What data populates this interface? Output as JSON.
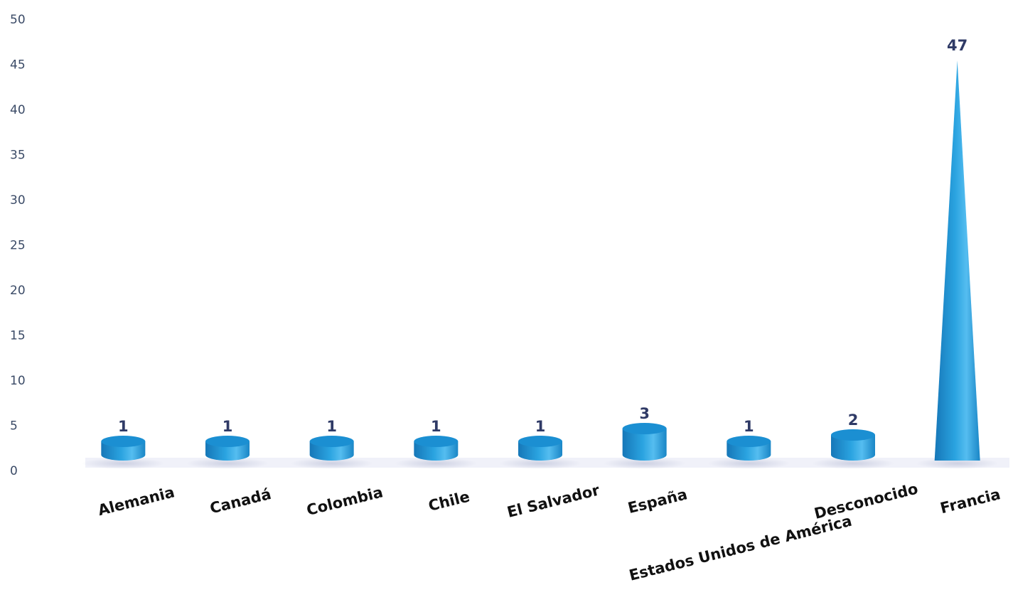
{
  "chart_data": {
    "type": "bar",
    "categories": [
      "Alemania",
      "Canadá",
      "Colombia",
      "Chile",
      "El Salvador",
      "España",
      "Estados Unidos de América",
      "Desconocido",
      "Francia"
    ],
    "values": [
      1,
      1,
      1,
      1,
      1,
      3,
      1,
      2,
      47
    ],
    "data_labels": [
      "1",
      "1",
      "1",
      "1",
      "1",
      "3",
      "1",
      "2",
      "47"
    ],
    "yticks": [
      "0",
      "5",
      "10",
      "15",
      "20",
      "25",
      "30",
      "35",
      "40",
      "45",
      "50"
    ],
    "ylim": [
      0,
      50
    ],
    "grid": true,
    "legend": "none",
    "colors": {
      "bar": "#1f9ad6",
      "bar_dark": "#1677b8",
      "bar_light": "#55bdf0",
      "label": "#2f3a66",
      "axis_text": "#3a4a66"
    }
  }
}
